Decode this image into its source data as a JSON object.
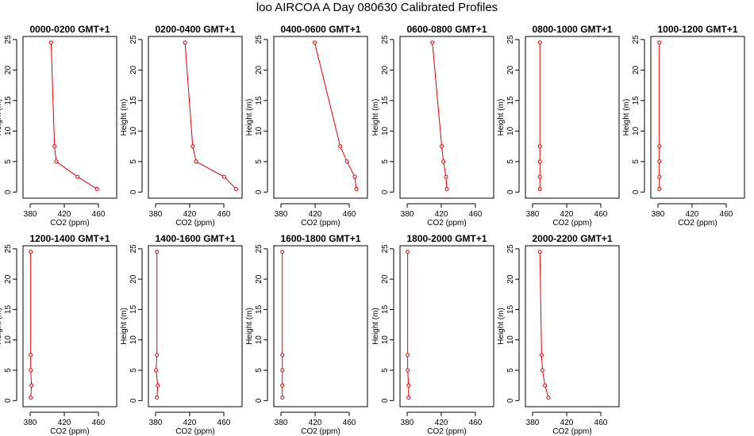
{
  "title": "loo AIRCOA A  Day 080630  Calibrated Profiles",
  "chart_data": {
    "type": "line",
    "xlabel": "CO2 (ppm)",
    "ylabel": "Height (m)",
    "xlim": [
      372,
      482
    ],
    "ylim": [
      -1,
      25.5
    ],
    "x_ticks": [
      380,
      420,
      460
    ],
    "y_ticks": [
      0,
      5,
      10,
      15,
      20,
      25
    ],
    "color": "#e00000",
    "grid": false,
    "heights": [
      24.5,
      7.5,
      5,
      2.5,
      0.5
    ],
    "panels": [
      {
        "title": "0000-0200 GMT+1",
        "co2": [
          405,
          409,
          411,
          436,
          459
        ]
      },
      {
        "title": "0200-0400 GMT+1",
        "co2": [
          415,
          424,
          428,
          461,
          475
        ]
      },
      {
        "title": "0400-0600 GMT+1",
        "co2": [
          420,
          450,
          458,
          467,
          469
        ]
      },
      {
        "title": "0600-0800 GMT+1",
        "co2": [
          410,
          421,
          423,
          426,
          427
        ]
      },
      {
        "title": "0800-1000 GMT+1",
        "co2": [
          389,
          389,
          389,
          389,
          389
        ]
      },
      {
        "title": "1000-1200 GMT+1",
        "co2": [
          382,
          382,
          382,
          382,
          382
        ]
      },
      {
        "title": "1200-1400 GMT+1",
        "co2": [
          381,
          381,
          381,
          382,
          381
        ]
      },
      {
        "title": "1400-1600 GMT+1",
        "co2": [
          382,
          382,
          381,
          383,
          382
        ]
      },
      {
        "title": "1600-1800 GMT+1",
        "co2": [
          382,
          382,
          382,
          382,
          382
        ]
      },
      {
        "title": "1800-2000 GMT+1",
        "co2": [
          381,
          381,
          381,
          382,
          382
        ]
      },
      {
        "title": "2000-2200 GMT+1",
        "co2": [
          389,
          391,
          392,
          395,
          399
        ]
      }
    ]
  }
}
